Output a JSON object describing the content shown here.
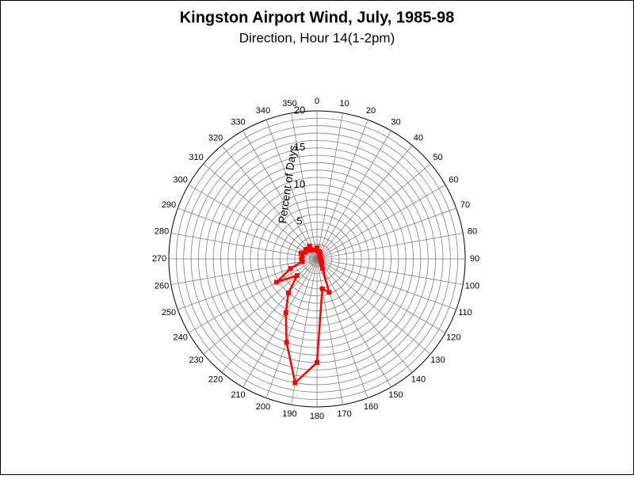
{
  "chart_data": {
    "type": "polar",
    "title": "Kingston Airport Wind, July, 1985-98",
    "subtitle": "Direction, Hour 14(1-2pm)",
    "r_label": "Percent of Days",
    "theta": [
      0,
      10,
      20,
      30,
      40,
      50,
      60,
      70,
      80,
      90,
      100,
      110,
      120,
      130,
      140,
      150,
      160,
      170,
      180,
      190,
      200,
      210,
      220,
      230,
      240,
      250,
      260,
      270,
      280,
      290,
      300,
      310,
      320,
      330,
      340,
      350
    ],
    "thetaticks": [
      0,
      10,
      20,
      30,
      40,
      50,
      60,
      70,
      80,
      90,
      100,
      110,
      120,
      130,
      140,
      150,
      160,
      170,
      180,
      190,
      200,
      210,
      220,
      230,
      240,
      250,
      260,
      270,
      280,
      290,
      300,
      310,
      320,
      330,
      340,
      350
    ],
    "rlim": [
      0,
      20
    ],
    "rticks": [
      5,
      10,
      15,
      20
    ],
    "r_gridlines": [
      1,
      2,
      3,
      4,
      5,
      6,
      7,
      8,
      9,
      10,
      11,
      12,
      13,
      14,
      15,
      16,
      17,
      18,
      19,
      20
    ],
    "series": [
      {
        "color": "#ff0000",
        "values": [
          1.5,
          1,
          1,
          0.8,
          0.6,
          0.5,
          0.5,
          0.5,
          0.5,
          0.5,
          0.5,
          0.6,
          0.6,
          0.8,
          1,
          1.5,
          4.8,
          4.1,
          14,
          17,
          12,
          8.4,
          6,
          3.5,
          6.3,
          3.8,
          2,
          2.1,
          2,
          2.3,
          1.8,
          2,
          1.5,
          2,
          1.3,
          1.2
        ]
      }
    ]
  }
}
